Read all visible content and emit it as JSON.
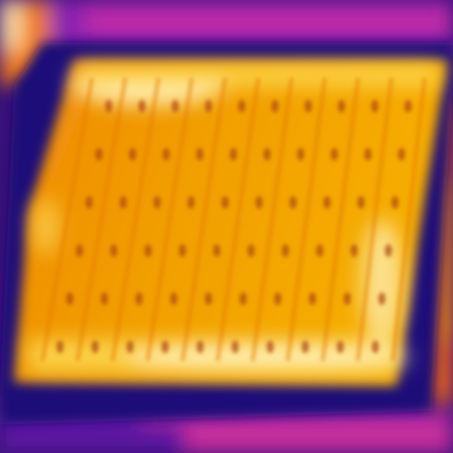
{
  "image": {
    "kind": "thermal-infrared-photo",
    "subject": "solar-panel",
    "palette": {
      "cold": "#1e0c78",
      "cool": "#6a1fb5",
      "mid": "#c8289a",
      "warm": "#ef6a10",
      "hot": "#f6b400",
      "hottest": "#fff4c0"
    },
    "cell_grid": {
      "rows": 6,
      "columns": 10
    }
  }
}
